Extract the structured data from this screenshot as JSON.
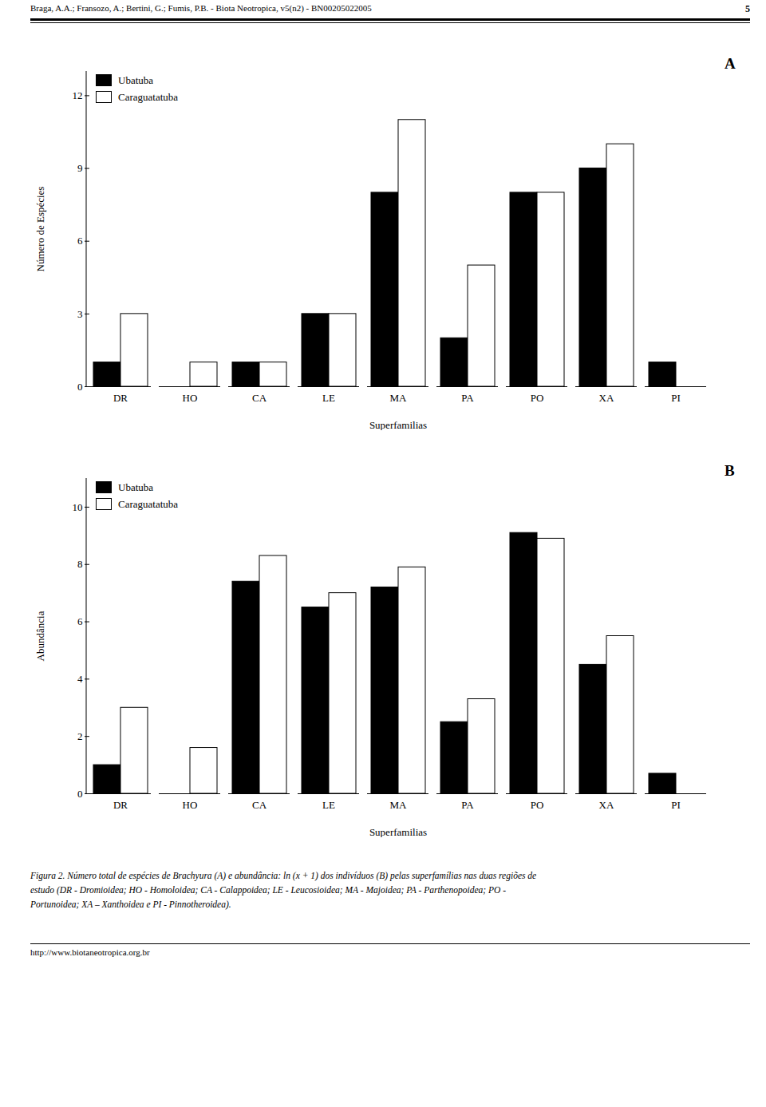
{
  "header": "Braga, A.A.; Fransozo, A.; Bertini, G.; Fumis, P.B. - Biota Neotropica, v5(n2) - BN00205022005",
  "page_number": "5",
  "chart_data": [
    {
      "type": "bar",
      "title": "A",
      "categories": [
        "DR",
        "HO",
        "CA",
        "LE",
        "MA",
        "PA",
        "PO",
        "XA",
        "PI"
      ],
      "series": [
        {
          "name": "Ubatuba",
          "color": "#000000",
          "values": [
            1,
            0,
            1,
            3,
            8,
            2,
            8,
            9,
            1
          ]
        },
        {
          "name": "Caraguatatuba",
          "color": "#ffffff",
          "values": [
            3,
            1,
            1,
            3,
            11,
            5,
            8,
            10,
            0
          ]
        }
      ],
      "xlabel": "Superfamilias",
      "ylabel": "Número de Espécies",
      "ylim": [
        0,
        13
      ],
      "yticks": [
        0,
        3,
        6,
        9,
        12
      ],
      "legend": "upper left"
    },
    {
      "type": "bar",
      "title": "B",
      "categories": [
        "DR",
        "HO",
        "CA",
        "LE",
        "MA",
        "PA",
        "PO",
        "XA",
        "PI"
      ],
      "series": [
        {
          "name": "Ubatuba",
          "color": "#000000",
          "values": [
            1.0,
            0,
            7.4,
            6.5,
            7.2,
            2.5,
            9.1,
            4.5,
            0.7
          ]
        },
        {
          "name": "Caraguatatuba",
          "color": "#ffffff",
          "values": [
            3.0,
            1.6,
            8.3,
            7.0,
            7.9,
            3.3,
            8.9,
            5.5,
            0
          ]
        }
      ],
      "xlabel": "Superfamilias",
      "ylabel": "Abundância",
      "ylim": [
        0,
        11
      ],
      "yticks": [
        0,
        2,
        4,
        6,
        8,
        10
      ],
      "legend": "upper left"
    }
  ],
  "caption": [
    "Figura 2. Número total de espécies de Brachyura (A) e abundância: ln (x + 1) dos indivíduos (B) pelas superfamílias nas duas regiões de",
    "estudo (DR - Dromioidea; HO - Homoloidea; CA - Calappoidea; LE - Leucosioidea; MA - Majoidea; PA - Parthenopoidea; PO -",
    "Portunoidea; XA – Xanthoidea e PI - Pinnotheroidea)."
  ],
  "footer": "http://www.biotaneotropica.org.br"
}
